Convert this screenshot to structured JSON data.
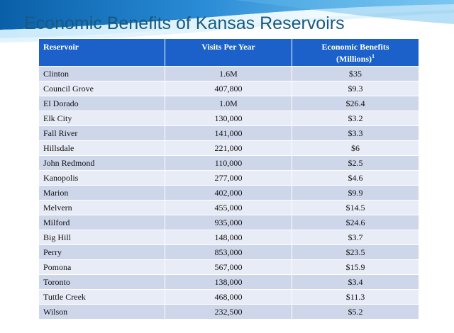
{
  "slide": {
    "title": "Economic Benefits of Kansas Reservoirs"
  },
  "colors": {
    "title": "#17597f",
    "header_fill": "#1b61c9",
    "row_odd": "#ced6ea",
    "row_even": "#e8ecf6",
    "swoosh": "#2a8cd6"
  },
  "table": {
    "headers": {
      "reservoir": "Reservoir",
      "visits": "Visits Per Year",
      "benefits_line1": "Economic Benefits",
      "benefits_line2": "(Millions)",
      "benefits_mark": "1"
    },
    "rows": [
      {
        "reservoir": "Clinton",
        "visits": "1.6M",
        "benefits": "$35"
      },
      {
        "reservoir": "Council Grove",
        "visits": "407,800",
        "benefits": "$9.3"
      },
      {
        "reservoir": "El Dorado",
        "visits": "1.0M",
        "benefits": "$26.4"
      },
      {
        "reservoir": "Elk City",
        "visits": "130,000",
        "benefits": "$3.2"
      },
      {
        "reservoir": "Fall River",
        "visits": "141,000",
        "benefits": "$3.3"
      },
      {
        "reservoir": "Hillsdale",
        "visits": "221,000",
        "benefits": "$6"
      },
      {
        "reservoir": "John Redmond",
        "visits": "110,000",
        "benefits": "$2.5"
      },
      {
        "reservoir": "Kanopolis",
        "visits": "277,000",
        "benefits": "$4.6"
      },
      {
        "reservoir": "Marion",
        "visits": "402,000",
        "benefits": "$9.9"
      },
      {
        "reservoir": "Melvern",
        "visits": "455,000",
        "benefits": "$14.5"
      },
      {
        "reservoir": "Milford",
        "visits": "935,000",
        "benefits": "$24.6"
      },
      {
        "reservoir": "Big Hill",
        "visits": "148,000",
        "benefits": "$3.7"
      },
      {
        "reservoir": "Perry",
        "visits": "853,000",
        "benefits": "$23.5"
      },
      {
        "reservoir": "Pomona",
        "visits": "567,000",
        "benefits": "$15.9"
      },
      {
        "reservoir": "Toronto",
        "visits": "138,000",
        "benefits": "$3.4"
      },
      {
        "reservoir": "Tuttle Creek",
        "visits": "468,000",
        "benefits": "$11.3"
      },
      {
        "reservoir": "Wilson",
        "visits": "232,500",
        "benefits": "$5.2"
      }
    ]
  }
}
